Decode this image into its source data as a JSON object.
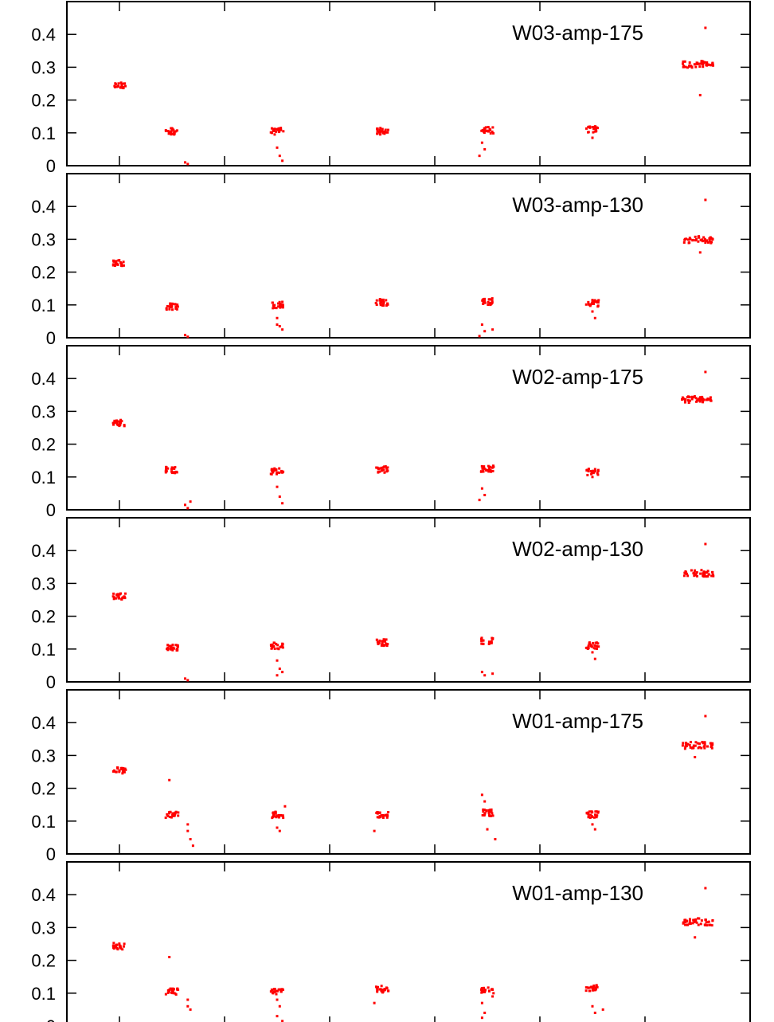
{
  "chart_data": [
    {
      "type": "scatter",
      "ylim": [
        0,
        0.5
      ],
      "yticks": [
        "0",
        "0.1",
        "0.2",
        "0.3",
        "0.4"
      ],
      "series": [
        {
          "name": "W03-amp-175",
          "color": "#ff0000",
          "clusters": [
            {
              "x": 1,
              "y": 0.243
            },
            {
              "x": 2,
              "y": 0.105
            },
            {
              "x": 4,
              "y": 0.105
            },
            {
              "x": 6,
              "y": 0.105
            },
            {
              "x": 8,
              "y": 0.108
            },
            {
              "x": 10,
              "y": 0.11
            },
            {
              "x": 12,
              "y": 0.31
            }
          ],
          "lowpoints": [
            [
              2.25,
              0.01
            ],
            [
              2.3,
              0.005
            ],
            [
              4.0,
              0.055
            ],
            [
              4.05,
              0.03
            ],
            [
              4.1,
              0.015
            ],
            [
              7.9,
              0.07
            ],
            [
              7.95,
              0.05
            ],
            [
              7.85,
              0.03
            ],
            [
              10.0,
              0.085
            ],
            [
              12.05,
              0.215
            ],
            [
              12.15,
              0.42
            ]
          ]
        },
        {
          "name": "W03-amp-130",
          "color": "#ff0000",
          "clusters": [
            {
              "x": 1,
              "y": 0.228
            },
            {
              "x": 2,
              "y": 0.095
            },
            {
              "x": 4,
              "y": 0.1
            },
            {
              "x": 6,
              "y": 0.108
            },
            {
              "x": 8,
              "y": 0.11
            },
            {
              "x": 10,
              "y": 0.105
            },
            {
              "x": 12,
              "y": 0.3
            }
          ],
          "lowpoints": [
            [
              2.25,
              0.008
            ],
            [
              2.3,
              0.003
            ],
            [
              4.0,
              0.06
            ],
            [
              4.05,
              0.035
            ],
            [
              4.1,
              0.025
            ],
            [
              4.0,
              0.04
            ],
            [
              7.9,
              0.04
            ],
            [
              7.95,
              0.02
            ],
            [
              7.85,
              0.005
            ],
            [
              8.1,
              0.025
            ],
            [
              10.0,
              0.08
            ],
            [
              10.05,
              0.06
            ],
            [
              12.05,
              0.26
            ],
            [
              12.15,
              0.42
            ]
          ]
        },
        {
          "name": "W02-amp-175",
          "color": "#ff0000",
          "clusters": [
            {
              "x": 1,
              "y": 0.265
            },
            {
              "x": 2,
              "y": 0.122
            },
            {
              "x": 4,
              "y": 0.118
            },
            {
              "x": 6,
              "y": 0.123
            },
            {
              "x": 8,
              "y": 0.125
            },
            {
              "x": 10,
              "y": 0.115
            },
            {
              "x": 12,
              "y": 0.338
            }
          ],
          "lowpoints": [
            [
              2.25,
              0.015
            ],
            [
              2.3,
              0.005
            ],
            [
              2.35,
              0.025
            ],
            [
              4.0,
              0.07
            ],
            [
              4.05,
              0.04
            ],
            [
              4.1,
              0.02
            ],
            [
              7.9,
              0.065
            ],
            [
              7.95,
              0.045
            ],
            [
              7.85,
              0.03
            ],
            [
              10.0,
              0.1
            ],
            [
              12.05,
              0.33
            ],
            [
              12.15,
              0.42
            ]
          ]
        },
        {
          "name": "W02-amp-130",
          "color": "#ff0000",
          "clusters": [
            {
              "x": 1,
              "y": 0.26
            },
            {
              "x": 2,
              "y": 0.105
            },
            {
              "x": 4,
              "y": 0.11
            },
            {
              "x": 6,
              "y": 0.12
            },
            {
              "x": 8,
              "y": 0.125
            },
            {
              "x": 10,
              "y": 0.11
            },
            {
              "x": 12,
              "y": 0.332
            }
          ],
          "lowpoints": [
            [
              2.25,
              0.01
            ],
            [
              2.3,
              0.005
            ],
            [
              4.0,
              0.065
            ],
            [
              4.05,
              0.04
            ],
            [
              4.1,
              0.03
            ],
            [
              4.0,
              0.02
            ],
            [
              7.9,
              0.03
            ],
            [
              7.95,
              0.02
            ],
            [
              8.1,
              0.025
            ],
            [
              10.0,
              0.09
            ],
            [
              10.05,
              0.07
            ],
            [
              12.15,
              0.42
            ]
          ]
        },
        {
          "name": "W01-amp-175",
          "color": "#ff0000",
          "clusters": [
            {
              "x": 1,
              "y": 0.255
            },
            {
              "x": 2,
              "y": 0.12
            },
            {
              "x": 4,
              "y": 0.12
            },
            {
              "x": 6,
              "y": 0.12
            },
            {
              "x": 8,
              "y": 0.125
            },
            {
              "x": 10,
              "y": 0.12
            },
            {
              "x": 12,
              "y": 0.333
            }
          ],
          "lowpoints": [
            [
              1.95,
              0.225
            ],
            [
              2.3,
              0.09
            ],
            [
              2.3,
              0.07
            ],
            [
              2.35,
              0.045
            ],
            [
              2.4,
              0.025
            ],
            [
              4.0,
              0.08
            ],
            [
              4.05,
              0.07
            ],
            [
              4.15,
              0.145
            ],
            [
              5.85,
              0.07
            ],
            [
              7.9,
              0.18
            ],
            [
              7.95,
              0.16
            ],
            [
              8.0,
              0.075
            ],
            [
              8.15,
              0.045
            ],
            [
              10.0,
              0.09
            ],
            [
              10.05,
              0.075
            ],
            [
              11.95,
              0.295
            ],
            [
              12.15,
              0.42
            ]
          ]
        },
        {
          "name": "W01-amp-130",
          "color": "#ff0000",
          "clusters": [
            {
              "x": 1,
              "y": 0.243
            },
            {
              "x": 2,
              "y": 0.105
            },
            {
              "x": 4,
              "y": 0.105
            },
            {
              "x": 6,
              "y": 0.112
            },
            {
              "x": 8,
              "y": 0.108
            },
            {
              "x": 10,
              "y": 0.115
            },
            {
              "x": 12,
              "y": 0.318
            }
          ],
          "lowpoints": [
            [
              1.95,
              0.21
            ],
            [
              2.3,
              0.08
            ],
            [
              2.3,
              0.06
            ],
            [
              2.35,
              0.05
            ],
            [
              4.0,
              0.08
            ],
            [
              4.05,
              0.06
            ],
            [
              4.0,
              0.03
            ],
            [
              4.1,
              0.015
            ],
            [
              4.05,
              0.005
            ],
            [
              5.85,
              0.07
            ],
            [
              7.9,
              0.07
            ],
            [
              7.95,
              0.04
            ],
            [
              7.9,
              0.025
            ],
            [
              8.1,
              0.09
            ],
            [
              10.0,
              0.06
            ],
            [
              10.05,
              0.04
            ],
            [
              10.2,
              0.05
            ],
            [
              11.95,
              0.27
            ],
            [
              12.15,
              0.42
            ]
          ]
        }
      ],
      "xlim": [
        0,
        13
      ],
      "xticks_count": 13
    }
  ]
}
